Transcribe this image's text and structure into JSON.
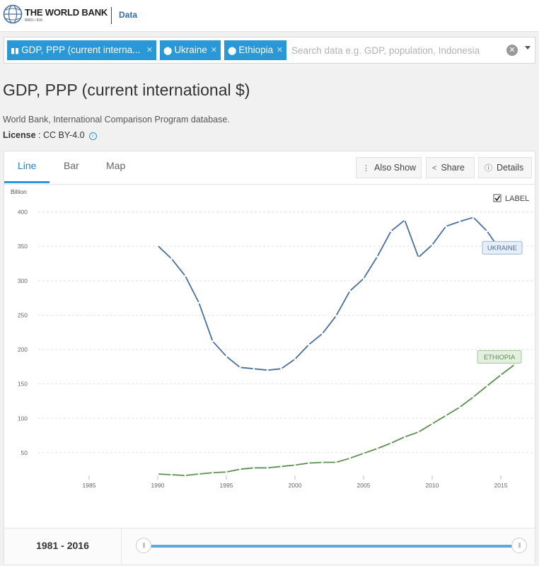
{
  "header": {
    "brand": "THE WORLD BANK",
    "brand_sub": "IBRD • IDA",
    "section": "Data"
  },
  "search": {
    "chips": [
      {
        "label": "GDP, PPP (current interna...",
        "icon": "bar-chart-icon"
      },
      {
        "label": "Ukraine",
        "icon": "map-pin-icon"
      },
      {
        "label": "Ethiopia",
        "icon": "map-pin-icon"
      }
    ],
    "placeholder": "Search data e.g. GDP, population, Indonesia"
  },
  "indicator": {
    "title": "GDP, PPP (current international $)",
    "source": "World Bank, International Comparison Program database.",
    "license_label": "License",
    "license_value": " : CC BY-4.0"
  },
  "tabs": [
    "Line",
    "Bar",
    "Map"
  ],
  "active_tab": "Line",
  "toolbar": {
    "also_show": "Also Show",
    "share": "Share",
    "details": "Details"
  },
  "label_toggle": {
    "label": "LABEL",
    "checked": true
  },
  "colors": {
    "accent": "#2a97d6",
    "ukraine": "#4a6f9a",
    "ethiopia": "#5c8f50"
  },
  "chart_data": {
    "type": "line",
    "ylabel": "Billion",
    "ylim": [
      0,
      400
    ],
    "yticks": [
      50,
      100,
      150,
      200,
      250,
      300,
      350,
      400
    ],
    "xlim": [
      1981,
      2016
    ],
    "xticks": [
      1985,
      1990,
      1995,
      2000,
      2005,
      2010,
      2015
    ],
    "grid": true,
    "series": [
      {
        "name": "UKRAINE",
        "x": [
          1990,
          1991,
          1992,
          1993,
          1994,
          1995,
          1996,
          1997,
          1998,
          1999,
          2000,
          2001,
          2002,
          2003,
          2004,
          2005,
          2006,
          2007,
          2008,
          2009,
          2010,
          2011,
          2012,
          2013,
          2014,
          2015,
          2016
        ],
        "values": [
          351,
          332,
          307,
          268,
          212,
          190,
          174,
          172,
          170,
          172,
          186,
          207,
          223,
          249,
          285,
          303,
          335,
          372,
          388,
          334,
          352,
          379,
          386,
          392,
          372,
          343,
          354
        ]
      },
      {
        "name": "ETHIOPIA",
        "x": [
          1990,
          1991,
          1992,
          1993,
          1994,
          1995,
          1996,
          1997,
          1998,
          1999,
          2000,
          2001,
          2002,
          2003,
          2004,
          2005,
          2006,
          2007,
          2008,
          2009,
          2010,
          2011,
          2012,
          2013,
          2014,
          2015,
          2016
        ],
        "values": [
          19,
          18,
          17,
          19,
          21,
          22,
          26,
          28,
          28,
          30,
          32,
          35,
          36,
          36,
          42,
          49,
          56,
          64,
          73,
          80,
          92,
          104,
          116,
          131,
          147,
          163,
          178
        ]
      }
    ]
  },
  "range": {
    "start": "1981",
    "end": "2016",
    "separator": "-"
  }
}
